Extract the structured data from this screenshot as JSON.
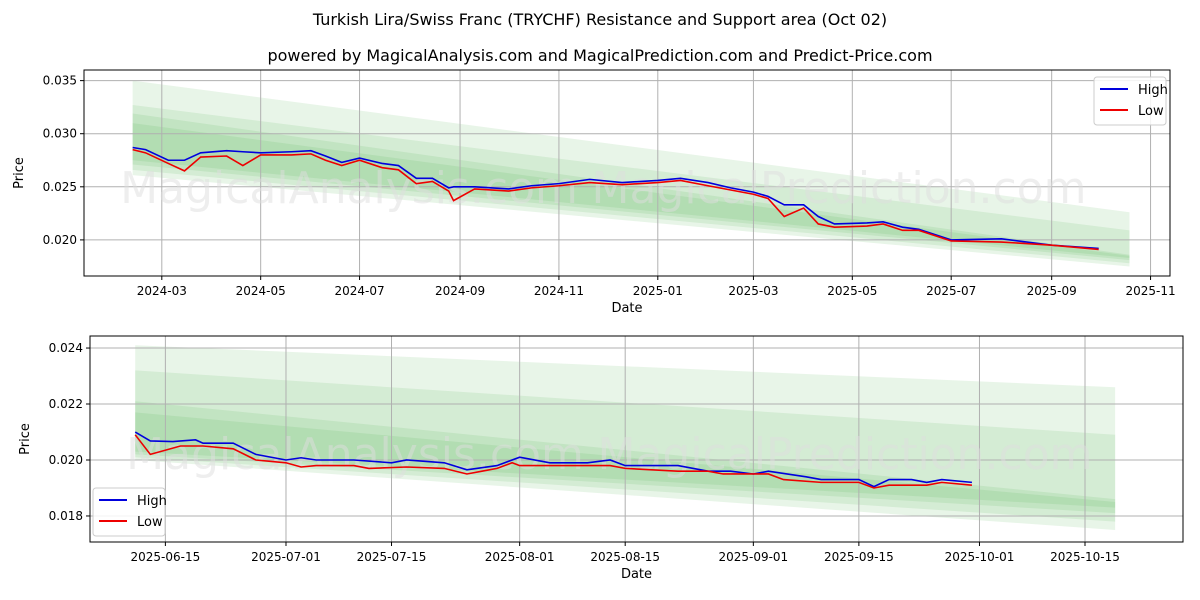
{
  "title": "Turkish Lira/Swiss Franc (TRYCHF) Resistance and Support area (Oct 02)",
  "subtitle": "powered by MagicalAnalysis.com and MagicalPrediction.com and Predict-Price.com",
  "watermarks": [
    "MagicalAnalysis.com",
    "MagicalPrediction.com"
  ],
  "colors": {
    "high": "#0000dd",
    "low": "#ee0000",
    "band": "#4caf50"
  },
  "chart_data": [
    {
      "type": "line",
      "xlabel": "Date",
      "ylabel": "Price",
      "xlim": [
        "2024-01-13",
        "2025-11-13"
      ],
      "ylim": [
        0.0166,
        0.036
      ],
      "xticks": [
        "2024-03",
        "2024-05",
        "2024-07",
        "2024-09",
        "2024-11",
        "2025-01",
        "2025-03",
        "2025-05",
        "2025-07",
        "2025-09",
        "2025-11"
      ],
      "yticks": [
        "0.020",
        "0.025",
        "0.030",
        "0.035"
      ],
      "legend": {
        "position": "top-right",
        "entries": [
          "High",
          "Low"
        ]
      },
      "bands": {
        "start": "2024-02-12",
        "end": "2025-10-19",
        "ranges": [
          [
            0.035,
            0.0226,
            0.0261,
            0.0175
          ],
          [
            0.0327,
            0.0209,
            0.0266,
            0.0178
          ],
          [
            0.0319,
            0.0186,
            0.0271,
            0.0181
          ],
          [
            0.031,
            0.0185,
            0.0275,
            0.0183
          ]
        ]
      },
      "series": [
        {
          "name": "High",
          "points": [
            [
              "2024-02-12",
              0.0287
            ],
            [
              "2024-02-20",
              0.0285
            ],
            [
              "2024-03-05",
              0.0275
            ],
            [
              "2024-03-15",
              0.0275
            ],
            [
              "2024-03-25",
              0.0282
            ],
            [
              "2024-04-10",
              0.0284
            ],
            [
              "2024-04-20",
              0.0283
            ],
            [
              "2024-05-01",
              0.0282
            ],
            [
              "2024-05-20",
              0.0283
            ],
            [
              "2024-06-01",
              0.0284
            ],
            [
              "2024-06-10",
              0.0279
            ],
            [
              "2024-06-20",
              0.0273
            ],
            [
              "2024-07-01",
              0.0277
            ],
            [
              "2024-07-15",
              0.0272
            ],
            [
              "2024-07-25",
              0.027
            ],
            [
              "2024-08-05",
              0.0258
            ],
            [
              "2024-08-15",
              0.0258
            ],
            [
              "2024-08-25",
              0.0249
            ],
            [
              "2024-08-28",
              0.025
            ],
            [
              "2024-09-10",
              0.025
            ],
            [
              "2024-10-01",
              0.0248
            ],
            [
              "2024-10-15",
              0.0251
            ],
            [
              "2024-11-01",
              0.0253
            ],
            [
              "2024-11-20",
              0.0257
            ],
            [
              "2024-12-10",
              0.0254
            ],
            [
              "2025-01-01",
              0.0256
            ],
            [
              "2025-01-15",
              0.0258
            ],
            [
              "2025-02-01",
              0.0254
            ],
            [
              "2025-02-15",
              0.0249
            ],
            [
              "2025-03-01",
              0.0245
            ],
            [
              "2025-03-10",
              0.0241
            ],
            [
              "2025-03-20",
              0.0233
            ],
            [
              "2025-04-01",
              0.0233
            ],
            [
              "2025-04-10",
              0.0222
            ],
            [
              "2025-04-20",
              0.0215
            ],
            [
              "2025-05-10",
              0.0216
            ],
            [
              "2025-05-20",
              0.0217
            ],
            [
              "2025-06-01",
              0.0212
            ],
            [
              "2025-06-11",
              0.021
            ],
            [
              "2025-07-01",
              0.02
            ],
            [
              "2025-08-01",
              0.0201
            ],
            [
              "2025-09-01",
              0.0195
            ],
            [
              "2025-09-30",
              0.0192
            ]
          ]
        },
        {
          "name": "Low",
          "points": [
            [
              "2024-02-12",
              0.0285
            ],
            [
              "2024-02-20",
              0.0282
            ],
            [
              "2024-03-05",
              0.0272
            ],
            [
              "2024-03-15",
              0.0265
            ],
            [
              "2024-03-25",
              0.0278
            ],
            [
              "2024-04-10",
              0.0279
            ],
            [
              "2024-04-20",
              0.027
            ],
            [
              "2024-05-01",
              0.028
            ],
            [
              "2024-05-20",
              0.028
            ],
            [
              "2024-06-01",
              0.0281
            ],
            [
              "2024-06-10",
              0.0275
            ],
            [
              "2024-06-20",
              0.027
            ],
            [
              "2024-07-01",
              0.0275
            ],
            [
              "2024-07-15",
              0.0268
            ],
            [
              "2024-07-25",
              0.0266
            ],
            [
              "2024-08-05",
              0.0253
            ],
            [
              "2024-08-15",
              0.0255
            ],
            [
              "2024-08-25",
              0.0246
            ],
            [
              "2024-08-28",
              0.0237
            ],
            [
              "2024-09-10",
              0.0248
            ],
            [
              "2024-10-01",
              0.0246
            ],
            [
              "2024-10-15",
              0.0249
            ],
            [
              "2024-11-01",
              0.0251
            ],
            [
              "2024-11-20",
              0.0254
            ],
            [
              "2024-12-10",
              0.0252
            ],
            [
              "2025-01-01",
              0.0254
            ],
            [
              "2025-01-15",
              0.0256
            ],
            [
              "2025-02-01",
              0.0251
            ],
            [
              "2025-02-15",
              0.0247
            ],
            [
              "2025-03-01",
              0.0243
            ],
            [
              "2025-03-10",
              0.0239
            ],
            [
              "2025-03-20",
              0.0222
            ],
            [
              "2025-04-01",
              0.023
            ],
            [
              "2025-04-10",
              0.0215
            ],
            [
              "2025-04-20",
              0.0212
            ],
            [
              "2025-05-10",
              0.0213
            ],
            [
              "2025-05-20",
              0.0215
            ],
            [
              "2025-06-01",
              0.0209
            ],
            [
              "2025-06-11",
              0.0209
            ],
            [
              "2025-07-01",
              0.0199
            ],
            [
              "2025-08-01",
              0.0198
            ],
            [
              "2025-09-01",
              0.0195
            ],
            [
              "2025-09-30",
              0.0191
            ]
          ]
        }
      ]
    },
    {
      "type": "line",
      "xlabel": "Date",
      "ylabel": "Price",
      "xlim": [
        "2025-06-05",
        "2025-10-28"
      ],
      "ylim": [
        0.01707,
        0.02443
      ],
      "xticks": [
        "2025-06-15",
        "2025-07-01",
        "2025-07-15",
        "2025-08-01",
        "2025-08-15",
        "2025-09-01",
        "2025-09-15",
        "2025-10-01",
        "2025-10-15"
      ],
      "yticks": [
        "0.018",
        "0.020",
        "0.022",
        "0.024"
      ],
      "legend": {
        "position": "bottom-left",
        "entries": [
          "High",
          "Low"
        ]
      },
      "bands": {
        "start": "2025-06-11",
        "end": "2025-10-19",
        "ranges": [
          [
            0.0241,
            0.0226,
            0.02,
            0.0175
          ],
          [
            0.0232,
            0.0209,
            0.0201,
            0.0178
          ],
          [
            0.0221,
            0.0186,
            0.0202,
            0.0181
          ],
          [
            0.0217,
            0.0185,
            0.0203,
            0.0183
          ]
        ]
      },
      "series": [
        {
          "name": "High",
          "points": [
            [
              "2025-06-11",
              0.021
            ],
            [
              "2025-06-13",
              0.02068
            ],
            [
              "2025-06-16",
              0.02066
            ],
            [
              "2025-06-19",
              0.02072
            ],
            [
              "2025-06-20",
              0.0206
            ],
            [
              "2025-06-24",
              0.0206
            ],
            [
              "2025-06-27",
              0.0202
            ],
            [
              "2025-07-01",
              0.02
            ],
            [
              "2025-07-03",
              0.02008
            ],
            [
              "2025-07-05",
              0.02
            ],
            [
              "2025-07-10",
              0.02
            ],
            [
              "2025-07-15",
              0.0199
            ],
            [
              "2025-07-17",
              0.02
            ],
            [
              "2025-07-22",
              0.0199
            ],
            [
              "2025-07-25",
              0.01965
            ],
            [
              "2025-07-29",
              0.0198
            ],
            [
              "2025-08-01",
              0.0201
            ],
            [
              "2025-08-05",
              0.0199
            ],
            [
              "2025-08-10",
              0.0199
            ],
            [
              "2025-08-13",
              0.02
            ],
            [
              "2025-08-15",
              0.0198
            ],
            [
              "2025-08-22",
              0.0198
            ],
            [
              "2025-08-26",
              0.0196
            ],
            [
              "2025-08-29",
              0.0196
            ],
            [
              "2025-09-01",
              0.0195
            ],
            [
              "2025-09-03",
              0.0196
            ],
            [
              "2025-09-08",
              0.0194
            ],
            [
              "2025-09-10",
              0.0193
            ],
            [
              "2025-09-15",
              0.0193
            ],
            [
              "2025-09-17",
              0.01905
            ],
            [
              "2025-09-19",
              0.0193
            ],
            [
              "2025-09-22",
              0.0193
            ],
            [
              "2025-09-24",
              0.0192
            ],
            [
              "2025-09-26",
              0.0193
            ],
            [
              "2025-09-30",
              0.0192
            ]
          ]
        },
        {
          "name": "Low",
          "points": [
            [
              "2025-06-11",
              0.0209
            ],
            [
              "2025-06-13",
              0.0202
            ],
            [
              "2025-06-17",
              0.0205
            ],
            [
              "2025-06-20",
              0.0205
            ],
            [
              "2025-06-24",
              0.0204
            ],
            [
              "2025-06-27",
              0.02
            ],
            [
              "2025-07-01",
              0.0199
            ],
            [
              "2025-07-03",
              0.01975
            ],
            [
              "2025-07-05",
              0.0198
            ],
            [
              "2025-07-10",
              0.0198
            ],
            [
              "2025-07-12",
              0.0197
            ],
            [
              "2025-07-17",
              0.01975
            ],
            [
              "2025-07-22",
              0.0197
            ],
            [
              "2025-07-25",
              0.0195
            ],
            [
              "2025-07-27",
              0.0196
            ],
            [
              "2025-07-29",
              0.0197
            ],
            [
              "2025-07-31",
              0.0199
            ],
            [
              "2025-08-01",
              0.0198
            ],
            [
              "2025-08-08",
              0.0198
            ],
            [
              "2025-08-13",
              0.0198
            ],
            [
              "2025-08-15",
              0.0197
            ],
            [
              "2025-08-22",
              0.0196
            ],
            [
              "2025-08-26",
              0.0196
            ],
            [
              "2025-08-28",
              0.0195
            ],
            [
              "2025-09-01",
              0.0195
            ],
            [
              "2025-09-03",
              0.0195
            ],
            [
              "2025-09-05",
              0.0193
            ],
            [
              "2025-09-10",
              0.0192
            ],
            [
              "2025-09-15",
              0.0192
            ],
            [
              "2025-09-17",
              0.019
            ],
            [
              "2025-09-19",
              0.0191
            ],
            [
              "2025-09-24",
              0.0191
            ],
            [
              "2025-09-26",
              0.0192
            ],
            [
              "2025-09-30",
              0.0191
            ]
          ]
        }
      ]
    }
  ]
}
